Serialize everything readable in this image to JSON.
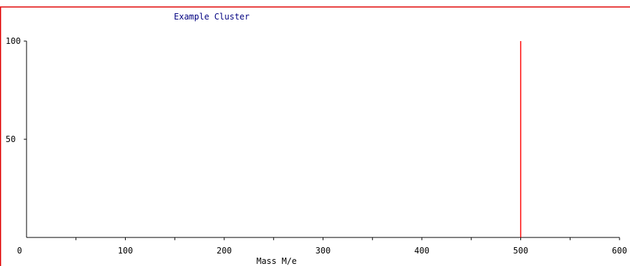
{
  "chart_data": {
    "type": "bar",
    "title": "Example Cluster",
    "xlabel": "Mass M/e",
    "ylabel": "",
    "xlim": [
      0,
      600
    ],
    "ylim": [
      0,
      100
    ],
    "x_ticks": [
      0,
      100,
      200,
      300,
      400,
      500,
      600
    ],
    "y_ticks": [
      50,
      100
    ],
    "series": [
      {
        "points": [
          {
            "x": 500,
            "y": 100
          }
        ]
      }
    ],
    "grid": false
  },
  "colors": {
    "frame": "#e00000",
    "peak": "#ff0000",
    "title": "#000080",
    "axis": "#000000"
  }
}
